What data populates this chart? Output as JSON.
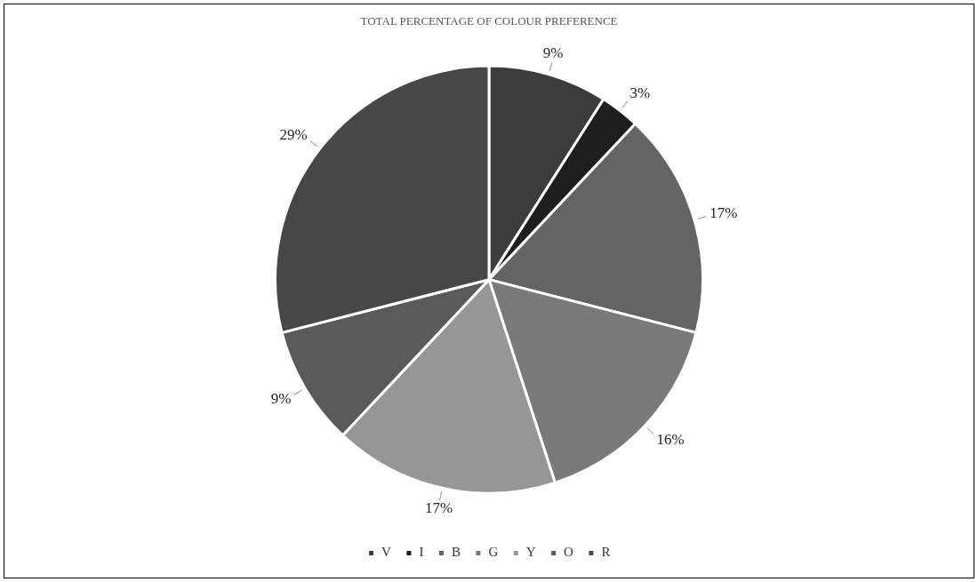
{
  "chart_data": {
    "type": "pie",
    "title": "TOTAL PERCENTAGE OF COLOUR PREFERENCE",
    "categories": [
      "V",
      "I",
      "B",
      "G",
      "Y",
      "O",
      "R"
    ],
    "values": [
      9,
      3,
      17,
      16,
      17,
      9,
      29
    ],
    "colors": [
      "#3c3c3c",
      "#1e1e1e",
      "#646464",
      "#7a7a7a",
      "#969696",
      "#5a5a5a",
      "#474747"
    ],
    "value_labels": [
      "9%",
      "3%",
      "17%",
      "16%",
      "17%",
      "9%",
      "29%"
    ],
    "legend": "bottom"
  }
}
